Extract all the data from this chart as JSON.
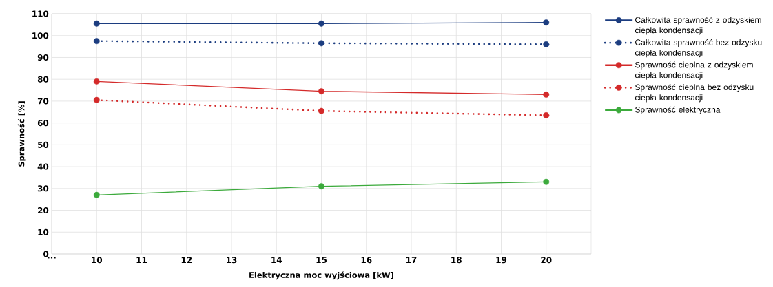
{
  "chart_data": {
    "type": "line",
    "xlabel": "Elektryczna moc wyjściowa [kW]",
    "ylabel": "Sprawność [%]",
    "x": [
      10,
      15,
      20
    ],
    "series": [
      {
        "name": "Całkowita sprawność z odzyskiem ciepła kondensacji",
        "color": "#1c3d80",
        "line_style": "solid",
        "values": [
          105.5,
          105.5,
          106
        ]
      },
      {
        "name": "Całkowita sprawność bez odzysku ciepła kondensacji",
        "color": "#1c3d80",
        "line_style": "dotted",
        "values": [
          97.5,
          96.5,
          96
        ]
      },
      {
        "name": "Sprawność cieplna z odzyskiem ciepła kondensacji",
        "color": "#d42a2a",
        "line_style": "solid",
        "values": [
          79,
          74.5,
          73
        ]
      },
      {
        "name": "Sprawność cieplna bez odzysku ciepła kondensacji",
        "color": "#d42a2a",
        "line_style": "dotted",
        "values": [
          70.5,
          65.5,
          63.5
        ]
      },
      {
        "name": "Sprawność elektryczna",
        "color": "#3caa3c",
        "line_style": "solid",
        "values": [
          27,
          31,
          33
        ]
      }
    ],
    "xlim": [
      9,
      21
    ],
    "ylim": [
      0,
      110
    ],
    "xticks": [
      {
        "value": 9,
        "label": "..."
      },
      10,
      11,
      12,
      13,
      14,
      15,
      16,
      17,
      18,
      19,
      20
    ],
    "yticks": [
      0,
      10,
      20,
      30,
      40,
      50,
      60,
      70,
      80,
      90,
      100,
      110
    ],
    "grid": true,
    "legend": "right",
    "marker": "circle"
  }
}
